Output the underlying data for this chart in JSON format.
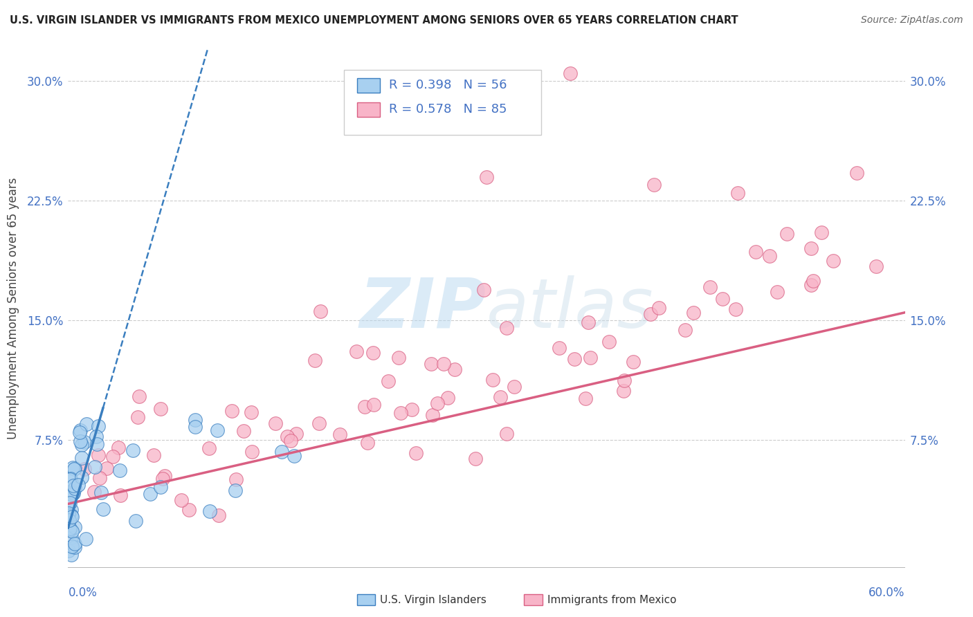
{
  "title": "U.S. VIRGIN ISLANDER VS IMMIGRANTS FROM MEXICO UNEMPLOYMENT AMONG SENIORS OVER 65 YEARS CORRELATION CHART",
  "source": "Source: ZipAtlas.com",
  "ylabel": "Unemployment Among Seniors over 65 years",
  "xlim": [
    0.0,
    0.6
  ],
  "ylim": [
    -0.005,
    0.32
  ],
  "color_blue": "#a8d0f0",
  "color_blue_dark": "#3a7ebf",
  "color_pink": "#f8b4c8",
  "color_pink_dark": "#d95f82",
  "background_color": "#ffffff",
  "grid_color": "#cccccc",
  "watermark_color": "#d8e8f0",
  "yticks": [
    0.075,
    0.15,
    0.225,
    0.3
  ],
  "ytick_labels": [
    "7.5%",
    "15.0%",
    "22.5%",
    "30.0%"
  ],
  "xtick_left": "0.0%",
  "xtick_right": "60.0%",
  "legend_r1": "R = 0.398",
  "legend_n1": "N = 56",
  "legend_r2": "R = 0.578",
  "legend_n2": "N = 85",
  "legend_color": "#4472c4",
  "tick_color": "#4472c4"
}
